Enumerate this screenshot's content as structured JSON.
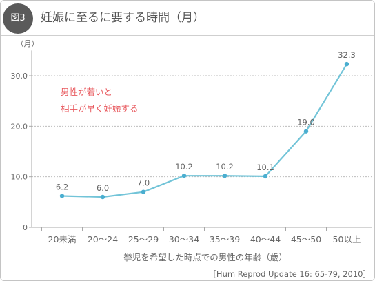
{
  "header": {
    "badge": "図3"
  },
  "chart_data": {
    "type": "line",
    "title": "妊娠に至るに要する時間（月）",
    "ylabel": "（月）",
    "xlabel": "挙児を希望した時点での男性の年齢（歳）",
    "categories": [
      "20未満",
      "20〜24",
      "25〜29",
      "30〜34",
      "35〜39",
      "40〜44",
      "45〜50",
      "50以上"
    ],
    "series": [
      {
        "values": [
          6.2,
          6.0,
          7.0,
          10.2,
          10.2,
          10.1,
          19.0,
          32.3
        ]
      }
    ],
    "ytick_values": [
      0,
      10,
      20,
      30
    ],
    "ytick_labels": [
      "0",
      "10.0",
      "20.0",
      "30.0"
    ],
    "ylim": [
      0,
      35
    ],
    "grid": true,
    "data_labels": true,
    "annotation": [
      "男性が若いと",
      "相手が早く妊娠する"
    ],
    "source": "［Hum Reprod Update 16: 65-79, 2010］"
  },
  "colors": {
    "line": "#72c4d8",
    "marker": "#4aaed0",
    "annotation": "#e8585d",
    "badge": "#5a5a5a",
    "text": "#666666",
    "grid": "#bdbdbd",
    "axis": "#a8a8a8"
  }
}
